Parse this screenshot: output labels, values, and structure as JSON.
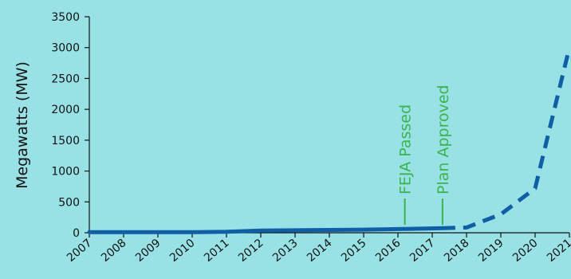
{
  "chart_data": {
    "type": "line",
    "title": "",
    "xlabel": "",
    "ylabel": "Megawatts (MW)",
    "ylim": [
      0,
      3500
    ],
    "xlim": [
      2007,
      2021
    ],
    "yticks": [
      0,
      500,
      1000,
      1500,
      2000,
      2500,
      3000,
      3500
    ],
    "xticks": [
      "2007",
      "2008",
      "2009",
      "2010",
      "2011",
      "2012",
      "2013",
      "2014",
      "2015",
      "2016",
      "2017",
      "2018",
      "2019",
      "2020",
      "2021"
    ],
    "grid": false,
    "series": [
      {
        "style": "solid",
        "x": [
          2007,
          2008,
          2009,
          2010,
          2011,
          2012,
          2013,
          2014,
          2015,
          2016,
          2017.3
        ],
        "y": [
          10,
          10,
          10,
          10,
          15,
          35,
          40,
          45,
          50,
          60,
          75
        ]
      },
      {
        "style": "dashed",
        "x": [
          2017.3,
          2018,
          2019,
          2020,
          2021
        ],
        "y": [
          75,
          85,
          300,
          720,
          3000
        ]
      }
    ],
    "annotations": [
      {
        "text": "FEJA Passed",
        "x": 2016.2
      },
      {
        "text": "Plan Approved",
        "x": 2017.3
      }
    ],
    "colors": {
      "background": "#98e2e6",
      "line": "#0e5fa8",
      "annotation": "#3bb54a",
      "axis": "#111111"
    }
  }
}
